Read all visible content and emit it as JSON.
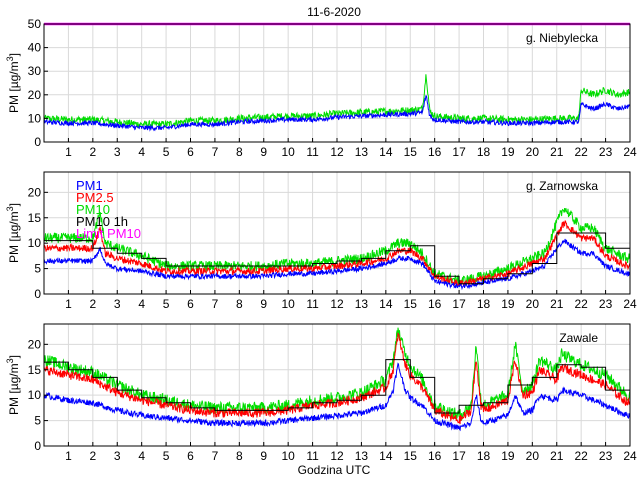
{
  "chart_data": {
    "type": "line",
    "title": "11-6-2020",
    "xlabel": "Godzina UTC",
    "ylabel_prefix": "PM [µg/m",
    "ylabel_exp": "3",
    "ylabel_suffix": "]",
    "xlim": [
      0,
      24
    ],
    "x_ticks": [
      "1",
      "2",
      "3",
      "4",
      "5",
      "6",
      "7",
      "8",
      "9",
      "10",
      "11",
      "12",
      "13",
      "14",
      "15",
      "16",
      "17",
      "18",
      "19",
      "20",
      "21",
      "22",
      "23",
      "24"
    ],
    "limit_pm10": 50,
    "legend": [
      {
        "name": "PM1",
        "color": "#0000ff"
      },
      {
        "name": "PM2.5",
        "color": "#ff0000"
      },
      {
        "name": "PM10",
        "color": "#00dd00"
      },
      {
        "name": "PM10 1h",
        "color": "#000000"
      },
      {
        "name": "Limit PM10",
        "color": "#ff00ff"
      }
    ],
    "colors": {
      "pm1": "#0000ff",
      "pm25": "#ff0000",
      "pm10": "#00dd00",
      "pm10_1h": "#000000",
      "limit": "#ff00ff"
    },
    "panels": [
      {
        "station": "g. Niebylecka",
        "ylim": [
          0,
          50
        ],
        "y_ticks": [
          "0",
          "10",
          "20",
          "30",
          "40",
          "50"
        ],
        "show_limit": true,
        "show_hourly": false,
        "show_pm25": false,
        "pm10_anchors": [
          [
            0,
            10
          ],
          [
            1,
            9.5
          ],
          [
            2,
            9.5
          ],
          [
            3,
            8.5
          ],
          [
            4,
            7.5
          ],
          [
            5,
            7.5
          ],
          [
            6,
            9
          ],
          [
            7,
            9
          ],
          [
            8,
            10
          ],
          [
            9,
            10.5
          ],
          [
            10,
            11
          ],
          [
            11,
            11
          ],
          [
            12,
            12
          ],
          [
            13,
            12.5
          ],
          [
            14,
            13
          ],
          [
            15,
            13.5
          ],
          [
            15.5,
            14
          ],
          [
            15.65,
            29
          ],
          [
            15.8,
            13
          ],
          [
            16,
            11
          ],
          [
            17,
            10
          ],
          [
            18,
            10
          ],
          [
            19,
            9.5
          ],
          [
            20,
            9.5
          ],
          [
            21,
            10
          ],
          [
            21.9,
            10
          ],
          [
            22,
            22
          ],
          [
            22.5,
            20
          ],
          [
            23,
            22
          ],
          [
            23.5,
            20
          ],
          [
            23.9,
            21
          ]
        ],
        "pm1_anchors": [
          [
            0,
            8.5
          ],
          [
            1,
            8
          ],
          [
            2,
            8
          ],
          [
            3,
            7
          ],
          [
            4,
            6
          ],
          [
            5,
            6
          ],
          [
            6,
            7.5
          ],
          [
            7,
            7.5
          ],
          [
            8,
            8.5
          ],
          [
            9,
            9
          ],
          [
            10,
            9.5
          ],
          [
            11,
            9.5
          ],
          [
            12,
            10.5
          ],
          [
            13,
            11
          ],
          [
            14,
            11.5
          ],
          [
            15,
            12
          ],
          [
            15.5,
            12.5
          ],
          [
            15.65,
            20
          ],
          [
            15.8,
            11
          ],
          [
            16,
            9.5
          ],
          [
            17,
            8.5
          ],
          [
            18,
            8.5
          ],
          [
            19,
            8
          ],
          [
            20,
            8
          ],
          [
            21,
            8.5
          ],
          [
            21.9,
            8.5
          ],
          [
            22,
            16
          ],
          [
            22.5,
            14
          ],
          [
            23,
            16
          ],
          [
            23.5,
            14
          ],
          [
            23.9,
            15
          ]
        ],
        "pm10_noise": 1.5,
        "pm1_noise": 1.0
      },
      {
        "station": "g. Zarnowska",
        "ylim": [
          0,
          24
        ],
        "y_ticks": [
          "0",
          "5",
          "10",
          "15",
          "20"
        ],
        "show_limit": false,
        "show_hourly": true,
        "show_pm25": true,
        "pm10_anchors": [
          [
            0,
            11
          ],
          [
            1,
            11
          ],
          [
            2,
            11
          ],
          [
            2.3,
            16
          ],
          [
            2.5,
            10
          ],
          [
            3,
            9
          ],
          [
            4,
            7.5
          ],
          [
            5,
            5.5
          ],
          [
            6,
            5.5
          ],
          [
            7,
            5.5
          ],
          [
            8,
            5.5
          ],
          [
            9,
            5.5
          ],
          [
            10,
            6
          ],
          [
            11,
            6
          ],
          [
            12,
            6.5
          ],
          [
            13,
            7
          ],
          [
            14,
            8.5
          ],
          [
            14.5,
            10
          ],
          [
            15,
            10
          ],
          [
            15.5,
            8
          ],
          [
            16,
            4
          ],
          [
            17,
            2.5
          ],
          [
            18,
            3.5
          ],
          [
            19,
            5
          ],
          [
            20,
            7
          ],
          [
            20.5,
            8
          ],
          [
            21,
            14
          ],
          [
            21.3,
            17
          ],
          [
            22,
            13
          ],
          [
            22.5,
            13
          ],
          [
            23,
            9
          ],
          [
            23.9,
            7
          ]
        ],
        "pm25_anchors": [
          [
            0,
            9
          ],
          [
            1,
            9
          ],
          [
            2,
            9
          ],
          [
            2.3,
            13
          ],
          [
            2.5,
            8
          ],
          [
            3,
            7
          ],
          [
            4,
            6
          ],
          [
            5,
            4.5
          ],
          [
            6,
            4.5
          ],
          [
            7,
            4.5
          ],
          [
            8,
            4.5
          ],
          [
            9,
            4.5
          ],
          [
            10,
            5
          ],
          [
            11,
            5
          ],
          [
            12,
            5.5
          ],
          [
            13,
            6
          ],
          [
            14,
            7
          ],
          [
            14.5,
            8.5
          ],
          [
            15,
            8.5
          ],
          [
            15.5,
            7
          ],
          [
            16,
            3.5
          ],
          [
            17,
            2
          ],
          [
            18,
            3
          ],
          [
            19,
            4
          ],
          [
            20,
            6
          ],
          [
            20.5,
            7
          ],
          [
            21,
            11.5
          ],
          [
            21.3,
            14
          ],
          [
            22,
            11
          ],
          [
            22.5,
            11
          ],
          [
            23,
            7.5
          ],
          [
            23.9,
            5.5
          ]
        ],
        "pm1_anchors": [
          [
            0,
            6.5
          ],
          [
            1,
            6.5
          ],
          [
            2,
            6.5
          ],
          [
            2.3,
            9
          ],
          [
            2.5,
            6
          ],
          [
            3,
            5
          ],
          [
            4,
            4.5
          ],
          [
            5,
            3.5
          ],
          [
            6,
            3.5
          ],
          [
            7,
            3.5
          ],
          [
            8,
            3.5
          ],
          [
            9,
            3.5
          ],
          [
            10,
            4
          ],
          [
            11,
            4
          ],
          [
            12,
            4.5
          ],
          [
            13,
            5
          ],
          [
            14,
            6
          ],
          [
            14.5,
            7
          ],
          [
            15,
            7
          ],
          [
            15.5,
            6
          ],
          [
            16,
            2.5
          ],
          [
            17,
            1.5
          ],
          [
            18,
            2.2
          ],
          [
            19,
            3
          ],
          [
            20,
            4.5
          ],
          [
            20.5,
            5.5
          ],
          [
            21,
            9
          ],
          [
            21.3,
            10.5
          ],
          [
            22,
            8
          ],
          [
            22.5,
            8
          ],
          [
            23,
            5.5
          ],
          [
            23.9,
            4
          ]
        ],
        "hourly": [
          10.5,
          10.5,
          9,
          8,
          7,
          5.5,
          5.5,
          5.5,
          5.5,
          5.5,
          5.5,
          6,
          6.5,
          7,
          8.5,
          9.5,
          3.5,
          2,
          3,
          4,
          6,
          12,
          12,
          9
        ],
        "pm10_noise": 1.0,
        "pm25_noise": 0.7,
        "pm1_noise": 0.5
      },
      {
        "station": "Zawale",
        "ylim": [
          0,
          24
        ],
        "y_ticks": [
          "0",
          "5",
          "10",
          "15",
          "20"
        ],
        "show_limit": false,
        "show_hourly": true,
        "show_pm25": true,
        "pm10_anchors": [
          [
            0,
            17
          ],
          [
            1,
            15.5
          ],
          [
            2,
            14.5
          ],
          [
            3,
            12
          ],
          [
            4,
            10
          ],
          [
            5,
            9
          ],
          [
            6,
            8
          ],
          [
            7,
            7.5
          ],
          [
            8,
            7.5
          ],
          [
            9,
            7.5
          ],
          [
            10,
            8
          ],
          [
            11,
            9
          ],
          [
            12,
            9.5
          ],
          [
            13,
            10.5
          ],
          [
            14,
            13
          ],
          [
            14.3,
            17
          ],
          [
            14.5,
            23
          ],
          [
            14.8,
            18
          ],
          [
            15,
            16
          ],
          [
            15.5,
            13
          ],
          [
            16,
            8
          ],
          [
            17,
            6
          ],
          [
            17.5,
            8
          ],
          [
            17.7,
            20
          ],
          [
            17.9,
            9
          ],
          [
            18,
            8
          ],
          [
            19,
            10
          ],
          [
            19.3,
            20
          ],
          [
            19.6,
            11
          ],
          [
            20,
            12
          ],
          [
            20.3,
            17
          ],
          [
            21,
            15
          ],
          [
            21.2,
            18
          ],
          [
            22,
            16
          ],
          [
            23,
            14
          ],
          [
            23.9,
            10
          ]
        ],
        "pm25_anchors": [
          [
            0,
            15
          ],
          [
            1,
            14
          ],
          [
            2,
            13
          ],
          [
            3,
            10.5
          ],
          [
            4,
            9
          ],
          [
            5,
            8
          ],
          [
            6,
            7
          ],
          [
            7,
            6.5
          ],
          [
            8,
            6.5
          ],
          [
            9,
            6.5
          ],
          [
            10,
            7
          ],
          [
            11,
            8
          ],
          [
            12,
            8.5
          ],
          [
            13,
            9.5
          ],
          [
            14,
            11.5
          ],
          [
            14.3,
            15
          ],
          [
            14.5,
            22
          ],
          [
            14.8,
            16
          ],
          [
            15,
            14
          ],
          [
            15.5,
            11.5
          ],
          [
            16,
            7
          ],
          [
            17,
            5
          ],
          [
            17.5,
            7
          ],
          [
            17.7,
            17
          ],
          [
            17.9,
            8
          ],
          [
            18,
            7
          ],
          [
            19,
            9
          ],
          [
            19.3,
            17
          ],
          [
            19.6,
            10
          ],
          [
            20,
            10.5
          ],
          [
            20.3,
            15
          ],
          [
            21,
            13
          ],
          [
            21.2,
            15.5
          ],
          [
            22,
            14
          ],
          [
            23,
            12
          ],
          [
            23.9,
            8.5
          ]
        ],
        "pm1_anchors": [
          [
            0,
            10
          ],
          [
            1,
            9
          ],
          [
            2,
            8.5
          ],
          [
            3,
            7
          ],
          [
            4,
            6
          ],
          [
            5,
            5.5
          ],
          [
            6,
            5
          ],
          [
            7,
            4.5
          ],
          [
            8,
            4.5
          ],
          [
            9,
            4.5
          ],
          [
            10,
            5
          ],
          [
            11,
            5.5
          ],
          [
            12,
            6
          ],
          [
            13,
            6.5
          ],
          [
            14,
            8
          ],
          [
            14.3,
            11
          ],
          [
            14.5,
            16
          ],
          [
            14.8,
            11
          ],
          [
            15,
            9.5
          ],
          [
            15.5,
            8
          ],
          [
            16,
            5
          ],
          [
            17,
            3.5
          ],
          [
            17.5,
            4.5
          ],
          [
            17.7,
            10
          ],
          [
            17.9,
            5
          ],
          [
            18,
            4.5
          ],
          [
            19,
            6
          ],
          [
            19.3,
            10
          ],
          [
            19.6,
            6.5
          ],
          [
            20,
            7
          ],
          [
            20.3,
            10
          ],
          [
            21,
            9
          ],
          [
            21.2,
            11
          ],
          [
            22,
            10
          ],
          [
            23,
            8
          ],
          [
            23.9,
            6
          ]
        ],
        "hourly": [
          16.5,
          15,
          13.5,
          11,
          9.5,
          8.5,
          7.5,
          7,
          7,
          7,
          7.5,
          8.5,
          9,
          10,
          17,
          13.5,
          6.5,
          8,
          8.5,
          12,
          13.5,
          16,
          15.5,
          11
        ],
        "pm10_noise": 1.2,
        "pm25_noise": 0.9,
        "pm1_noise": 0.6
      }
    ]
  }
}
